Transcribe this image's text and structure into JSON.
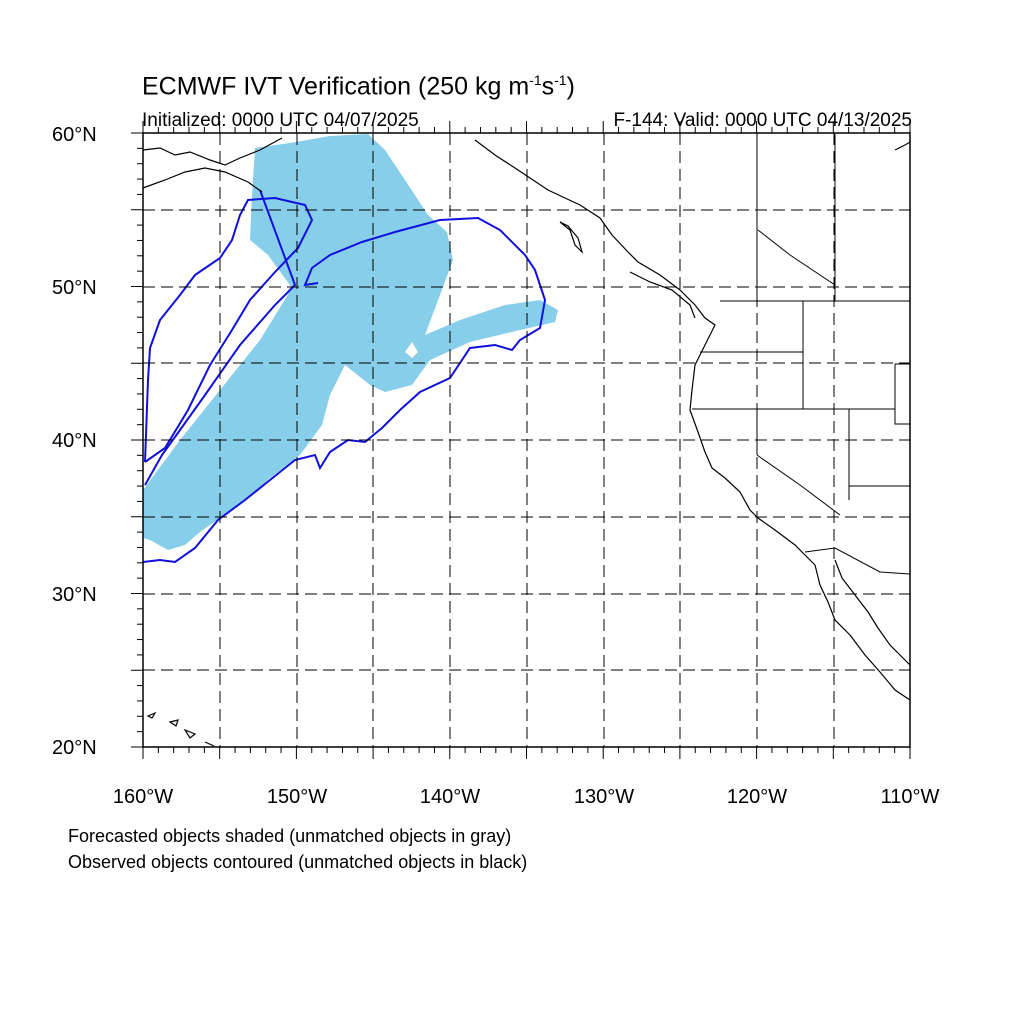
{
  "title": {
    "text": "ECMWF IVT Verification (250 kg m",
    "sup1": "-1",
    "mid": "s",
    "sup2": "-1",
    "end": ")"
  },
  "initialized": "Initialized: 0000 UTC 04/07/2025",
  "valid": "F-144: Valid: 0000 UTC 04/13/2025",
  "lat_labels": [
    "60°N",
    "50°N",
    "40°N",
    "30°N",
    "20°N"
  ],
  "lon_labels": [
    "160°W",
    "150°W",
    "140°W",
    "130°W",
    "120°W",
    "110°W"
  ],
  "notes": [
    "Forecasted objects shaded (unmatched objects in gray)",
    "Observed objects contoured (unmatched objects in black)"
  ],
  "colors": {
    "forecast_fill": "#87ceeb",
    "observed_contour": "#1010dd",
    "coastline": "#000000",
    "grid": "#000000"
  },
  "map_extent": {
    "lon_min": -160,
    "lon_max": -110,
    "lat_min": 20,
    "lat_max": 60
  }
}
